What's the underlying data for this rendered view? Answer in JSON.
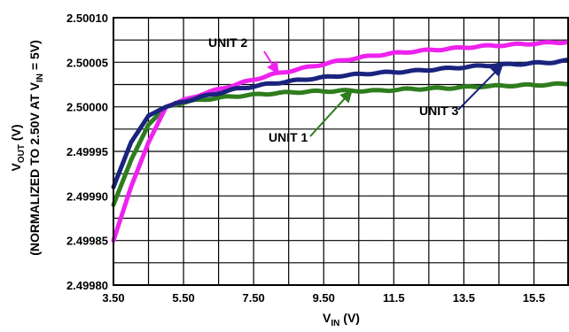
{
  "chart_data": {
    "type": "line",
    "xlim": [
      3.5,
      16.5
    ],
    "ylim": [
      2.4998,
      2.5001
    ],
    "x_ticks": [
      3.5,
      5.5,
      7.5,
      9.5,
      11.5,
      13.5,
      15.5
    ],
    "x_tick_labels": [
      "3.50",
      "5.50",
      "7.50",
      "9.50",
      "11.5",
      "13.5",
      "15.5"
    ],
    "y_ticks": [
      2.4998,
      2.49985,
      2.4999,
      2.49995,
      2.5,
      2.50005,
      2.5001
    ],
    "y_tick_labels": [
      "2.49980",
      "2.49985",
      "2.49990",
      "2.49995",
      "2.50000",
      "2.50005",
      "2.50010"
    ],
    "xlabel": {
      "main": "V",
      "sub": "IN",
      "unit": " (V)"
    },
    "ylabel": {
      "line1_main": "V",
      "line1_sub": "OUT",
      "line1_unit": " (V)",
      "line2_pre": "(NORMALIZED TO 2.50V AT V",
      "line2_sub": "IN",
      "line2_post": " = 5V)"
    },
    "grid": true,
    "series": [
      {
        "name": "UNIT 1",
        "color": "#2e7d1e",
        "x": [
          3.5,
          4.0,
          4.5,
          5.0,
          5.5,
          6.0,
          7.0,
          8.0,
          9.0,
          10.0,
          11.0,
          12.0,
          13.0,
          14.0,
          15.0,
          16.0,
          16.5
        ],
        "y": [
          2.49989,
          2.49994,
          2.49998,
          2.5,
          2.500005,
          2.500008,
          2.500012,
          2.500015,
          2.500017,
          2.500018,
          2.500018,
          2.50002,
          2.500021,
          2.500023,
          2.500024,
          2.500025,
          2.500026
        ]
      },
      {
        "name": "UNIT 2",
        "color": "#ee22ee",
        "x": [
          3.5,
          4.0,
          4.5,
          5.0,
          5.5,
          6.0,
          7.0,
          8.0,
          9.0,
          10.0,
          11.0,
          12.0,
          13.0,
          14.0,
          15.0,
          16.0,
          16.5
        ],
        "y": [
          2.49985,
          2.49991,
          2.49996,
          2.5,
          2.500007,
          2.500014,
          2.500025,
          2.500036,
          2.500044,
          2.500052,
          2.500058,
          2.500062,
          2.500065,
          2.500068,
          2.50007,
          2.500072,
          2.500073
        ]
      },
      {
        "name": "UNIT 3",
        "color": "#1a237e",
        "x": [
          3.5,
          4.0,
          4.5,
          5.0,
          5.5,
          6.0,
          7.0,
          8.0,
          9.0,
          10.0,
          11.0,
          12.0,
          13.0,
          14.0,
          15.0,
          16.0,
          16.5
        ],
        "y": [
          2.49991,
          2.49996,
          2.49999,
          2.5,
          2.500006,
          2.500011,
          2.50002,
          2.500026,
          2.500031,
          2.500035,
          2.500038,
          2.50004,
          2.500043,
          2.500046,
          2.500048,
          2.50005,
          2.500052
        ]
      }
    ],
    "annotations": [
      {
        "text": "UNIT 2",
        "series": "UNIT 2",
        "arrow_to_x": 8.2
      },
      {
        "text": "UNIT 1",
        "series": "UNIT 1",
        "arrow_to_x": 10.3
      },
      {
        "text": "UNIT 3",
        "series": "UNIT 3",
        "arrow_to_x": 14.6
      }
    ]
  }
}
